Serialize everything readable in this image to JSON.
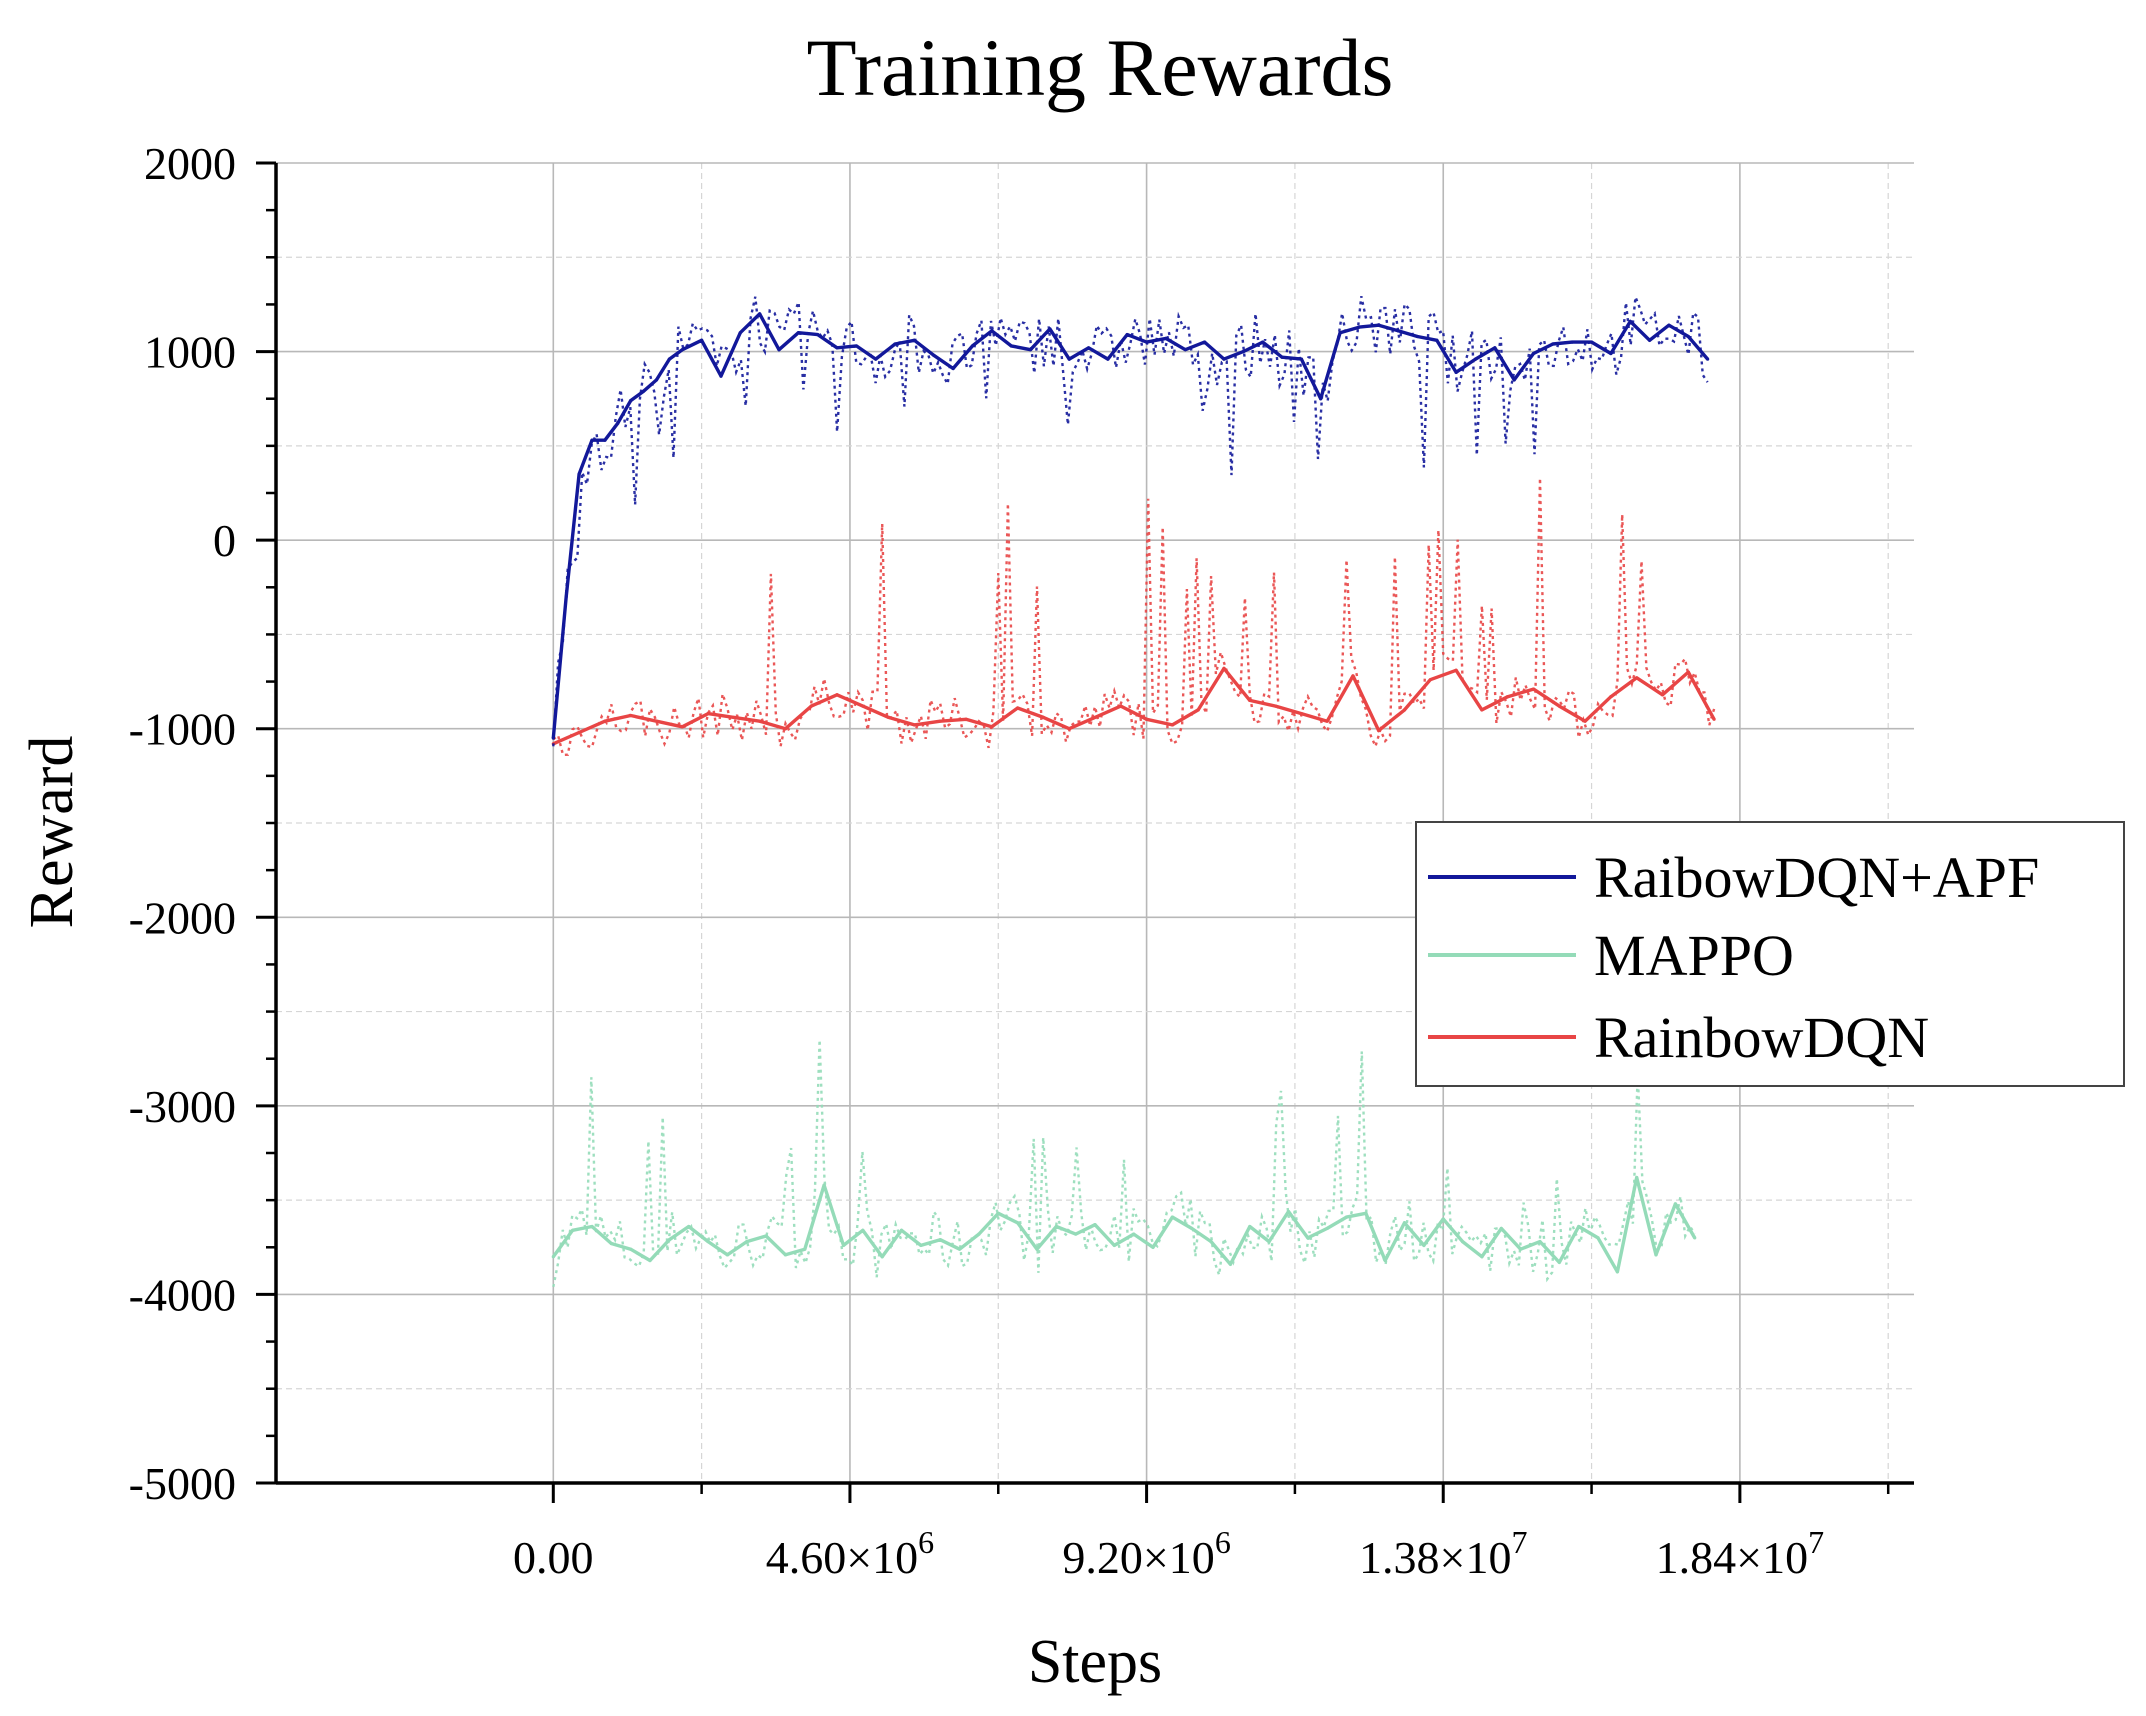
{
  "chart_data": {
    "type": "line",
    "title": "Training Rewards",
    "xlabel": "Steps",
    "ylabel": "Reward",
    "xlim": [
      -4300000,
      21100000
    ],
    "ylim": [
      -5000,
      2000
    ],
    "x_ticks": [
      0,
      4600000,
      9200000,
      13800000,
      18400000
    ],
    "x_tick_labels": [
      {
        "mantissa": "0.00",
        "exp": ""
      },
      {
        "mantissa": "4.60×10",
        "exp": "6"
      },
      {
        "mantissa": "9.20×10",
        "exp": "6"
      },
      {
        "mantissa": "1.38×10",
        "exp": "7"
      },
      {
        "mantissa": "1.84×10",
        "exp": "7"
      }
    ],
    "y_ticks": [
      2000,
      1000,
      0,
      -1000,
      -2000,
      -3000,
      -4000,
      -5000
    ],
    "y_tick_labels": [
      "2000",
      "1000",
      "0",
      "-1000",
      "-2000",
      "-3000",
      "-4000",
      "-5000"
    ],
    "grid": true,
    "legend_position": "right",
    "series": [
      {
        "name": "RaibowDQN+APF",
        "color": "#12189a",
        "x": [
          0,
          200000,
          400000,
          600000,
          800000,
          1000000,
          1200000,
          1400000,
          1600000,
          1800000,
          2000000,
          2300000,
          2600000,
          2900000,
          3200000,
          3500000,
          3800000,
          4100000,
          4400000,
          4700000,
          5000000,
          5300000,
          5600000,
          5900000,
          6200000,
          6500000,
          6800000,
          7100000,
          7400000,
          7700000,
          8000000,
          8300000,
          8600000,
          8900000,
          9200000,
          9500000,
          9800000,
          10100000,
          10400000,
          10700000,
          11000000,
          11300000,
          11600000,
          11900000,
          12200000,
          12500000,
          12800000,
          13100000,
          13400000,
          13700000,
          14000000,
          14300000,
          14600000,
          14900000,
          15200000,
          15500000,
          15800000,
          16100000,
          16400000,
          16700000,
          17000000,
          17300000,
          17600000,
          17900000
        ],
        "values": [
          -1050,
          -300,
          350,
          530,
          530,
          620,
          740,
          790,
          850,
          960,
          1010,
          1060,
          870,
          1100,
          1200,
          1010,
          1100,
          1090,
          1020,
          1030,
          960,
          1040,
          1060,
          980,
          910,
          1030,
          1110,
          1030,
          1010,
          1120,
          960,
          1020,
          960,
          1090,
          1050,
          1070,
          1010,
          1050,
          960,
          1000,
          1050,
          970,
          960,
          750,
          1100,
          1130,
          1140,
          1110,
          1080,
          1060,
          890,
          960,
          1020,
          850,
          990,
          1040,
          1050,
          1050,
          990,
          1160,
          1060,
          1140,
          1080,
          960
        ]
      },
      {
        "name": "MAPPO",
        "color": "#94dbb8",
        "x": [
          0,
          300000,
          600000,
          900000,
          1200000,
          1500000,
          1800000,
          2100000,
          2400000,
          2700000,
          3000000,
          3300000,
          3600000,
          3900000,
          4200000,
          4500000,
          4800000,
          5100000,
          5400000,
          5700000,
          6000000,
          6300000,
          6600000,
          6900000,
          7200000,
          7500000,
          7800000,
          8100000,
          8400000,
          8700000,
          9000000,
          9300000,
          9600000,
          9900000,
          10200000,
          10500000,
          10800000,
          11100000,
          11400000,
          11700000,
          12000000,
          12300000,
          12600000,
          12900000,
          13200000,
          13500000,
          13800000,
          14100000,
          14400000,
          14700000,
          15000000,
          15300000,
          15600000,
          15900000,
          16200000,
          16500000,
          16800000,
          17100000,
          17400000,
          17700000
        ],
        "values": [
          -3800,
          -3660,
          -3640,
          -3730,
          -3760,
          -3820,
          -3710,
          -3640,
          -3720,
          -3790,
          -3720,
          -3690,
          -3790,
          -3760,
          -3420,
          -3740,
          -3660,
          -3800,
          -3660,
          -3740,
          -3710,
          -3760,
          -3680,
          -3570,
          -3620,
          -3760,
          -3640,
          -3680,
          -3630,
          -3740,
          -3680,
          -3750,
          -3590,
          -3650,
          -3720,
          -3840,
          -3640,
          -3720,
          -3560,
          -3700,
          -3650,
          -3590,
          -3570,
          -3820,
          -3620,
          -3740,
          -3600,
          -3720,
          -3800,
          -3650,
          -3760,
          -3720,
          -3830,
          -3640,
          -3700,
          -3880,
          -3380,
          -3790,
          -3520,
          -3700
        ]
      },
      {
        "name": "RainbowDQN",
        "color": "#e84545",
        "x": [
          0,
          400000,
          800000,
          1200000,
          1600000,
          2000000,
          2400000,
          2800000,
          3200000,
          3600000,
          4000000,
          4400000,
          4800000,
          5200000,
          5600000,
          6000000,
          6400000,
          6800000,
          7200000,
          7600000,
          8000000,
          8400000,
          8800000,
          9200000,
          9600000,
          10000000,
          10400000,
          10800000,
          11200000,
          11600000,
          12000000,
          12400000,
          12800000,
          13200000,
          13600000,
          14000000,
          14400000,
          14800000,
          15200000,
          15600000,
          16000000,
          16400000,
          16800000,
          17200000,
          17600000,
          18000000
        ],
        "values": [
          -1080,
          -1020,
          -960,
          -930,
          -960,
          -990,
          -920,
          -940,
          -960,
          -1000,
          -880,
          -820,
          -880,
          -940,
          -980,
          -960,
          -950,
          -990,
          -890,
          -940,
          -1000,
          -940,
          -880,
          -950,
          -980,
          -900,
          -680,
          -850,
          -880,
          -920,
          -960,
          -720,
          -1010,
          -900,
          -740,
          -690,
          -900,
          -830,
          -790,
          -880,
          -960,
          -830,
          -730,
          -820,
          -700,
          -950
        ]
      }
    ]
  }
}
